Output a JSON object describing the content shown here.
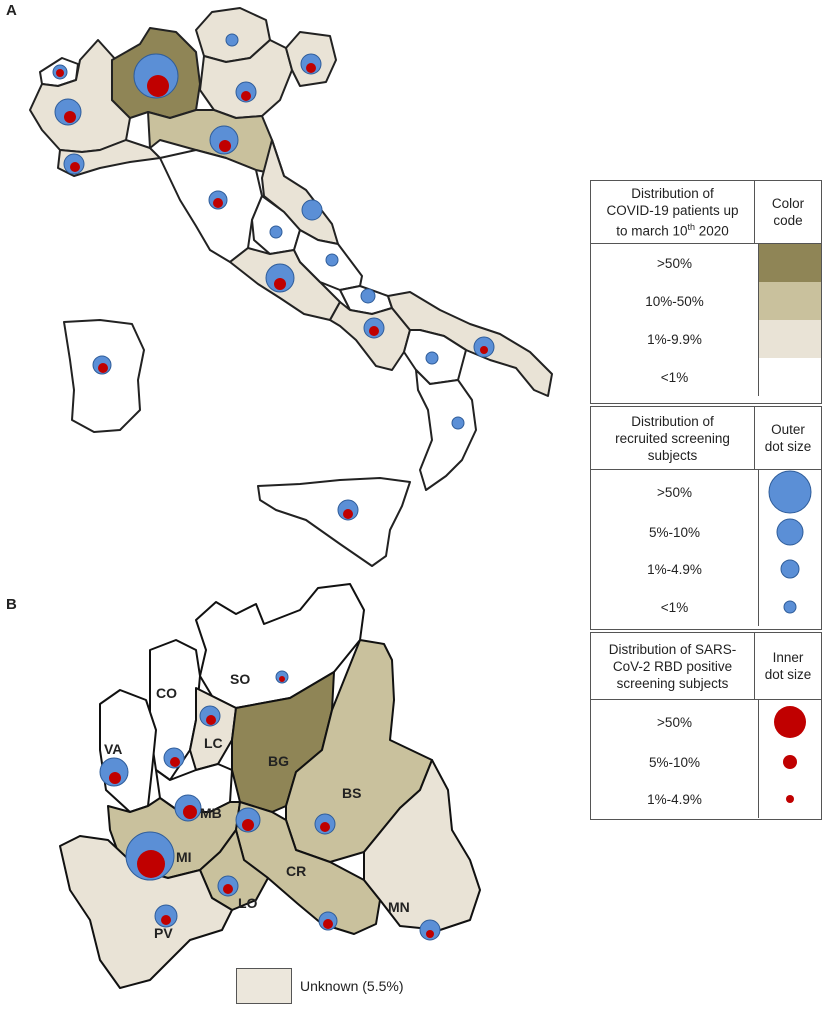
{
  "panels": {
    "a_label": "A",
    "b_label": "B"
  },
  "colors": {
    "fill_gt50": "#8f8556",
    "fill_10_50": "#c9c19d",
    "fill_1_9": "#e9e3d6",
    "fill_lt1": "#ffffff",
    "outer_dot": "#5b8fd6",
    "inner_dot": "#c00000"
  },
  "legend": {
    "color_section": {
      "header_title_line1": "Distribution of",
      "header_title_line2": "COVID-19 patients up",
      "header_title_line3": "to march 10",
      "header_sup": "th",
      "header_year": " 2020",
      "header_code_line1": "Color",
      "header_code_line2": "code",
      "rows": [
        {
          "label": ">50%",
          "fill": "#8f8556"
        },
        {
          "label": "10%-50%",
          "fill": "#c9c19d"
        },
        {
          "label": "1%-9.9%",
          "fill": "#e9e3d6"
        },
        {
          "label": "<1%",
          "fill": "#ffffff"
        }
      ]
    },
    "outer_section": {
      "header_title_line1": "Distribution of",
      "header_title_line2": "recruited screening",
      "header_title_line3": "subjects",
      "header_code_line1": "Outer",
      "header_code_line2": "dot size",
      "rows": [
        {
          "label": ">50%"
        },
        {
          "label": "5%-10%"
        },
        {
          "label": "1%-4.9%"
        },
        {
          "label": "<1%"
        }
      ]
    },
    "inner_section": {
      "header_title_line1": "Distribution of SARS-",
      "header_title_line2": "CoV-2 RBD positive",
      "header_title_line3": "screening subjects",
      "header_code_line1": "Inner",
      "header_code_line2": "dot size",
      "rows": [
        {
          "label": ">50%"
        },
        {
          "label": "5%-10%"
        },
        {
          "label": "1%-4.9%"
        }
      ]
    }
  },
  "provinces": {
    "so": "SO",
    "co": "CO",
    "lc": "LC",
    "va": "VA",
    "bg": "BG",
    "mb": "MB",
    "bs": "BS",
    "mi": "MI",
    "cr": "CR",
    "lo": "LO",
    "pv": "PV",
    "mn": "MN"
  },
  "unknown_label": "Unknown (5.5%)"
}
